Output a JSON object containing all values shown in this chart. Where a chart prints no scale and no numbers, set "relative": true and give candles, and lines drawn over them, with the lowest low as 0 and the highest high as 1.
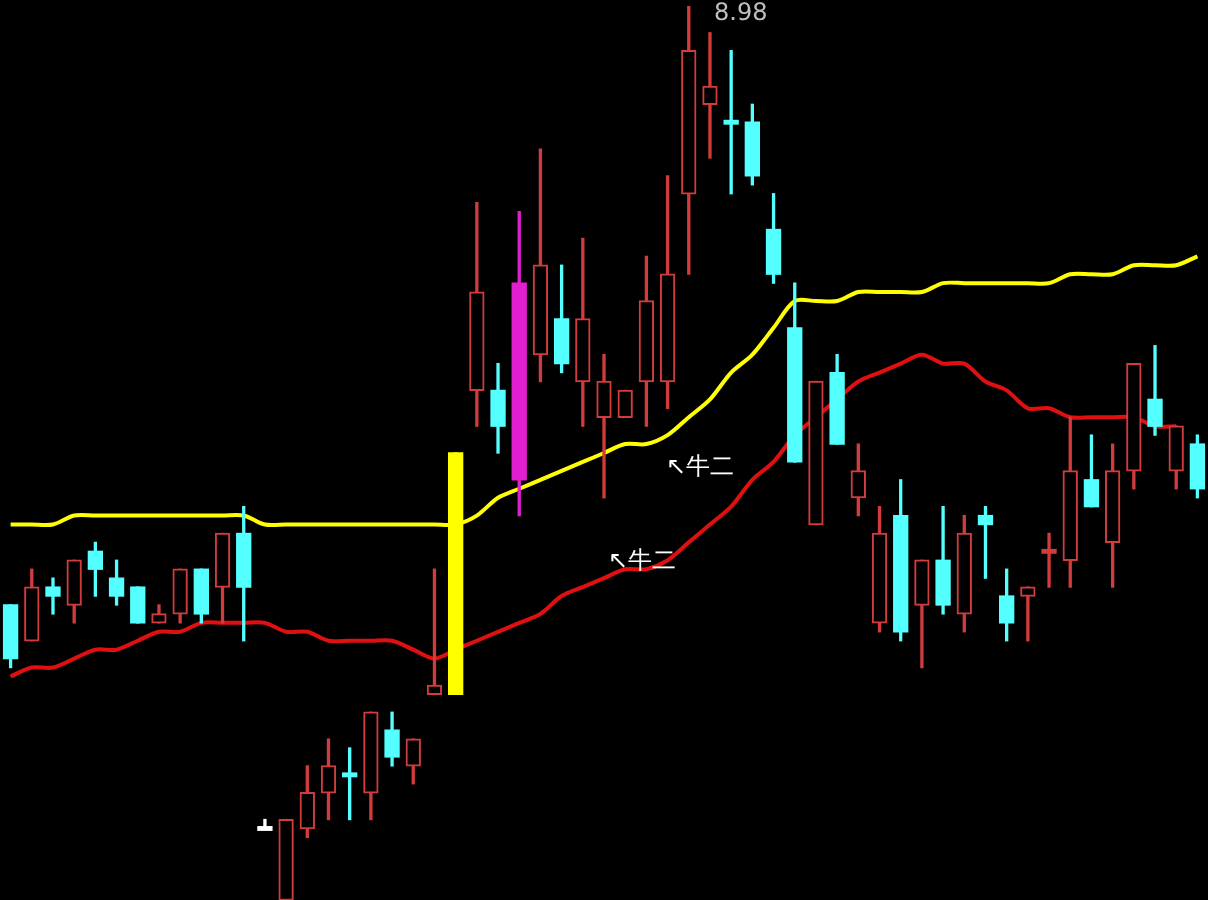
{
  "chart_data": {
    "type": "candlestick",
    "relative": true,
    "tick_labels": false,
    "legend": false,
    "categories": [
      null,
      null,
      null,
      null,
      null,
      null,
      null,
      null,
      null,
      null,
      null,
      null,
      null,
      null,
      null,
      null,
      null,
      null,
      null,
      null,
      null,
      null,
      null,
      null,
      null,
      null,
      null,
      null,
      null,
      null,
      null,
      null,
      null,
      null,
      null,
      null,
      null,
      null,
      null,
      null,
      null,
      null,
      null,
      null,
      null,
      null,
      null,
      null,
      null,
      null,
      null,
      null,
      null,
      null,
      null,
      null,
      null
    ],
    "ohlc": [
      [
        0.33,
        0.33,
        0.26,
        0.27
      ],
      [
        0.29,
        0.37,
        0.29,
        0.35
      ],
      [
        0.35,
        0.36,
        0.32,
        0.34
      ],
      [
        0.33,
        0.38,
        0.31,
        0.38
      ],
      [
        0.39,
        0.4,
        0.34,
        0.37
      ],
      [
        0.36,
        0.38,
        0.33,
        0.34
      ],
      [
        0.35,
        0.35,
        0.31,
        0.31
      ],
      [
        0.31,
        0.33,
        0.31,
        0.32
      ],
      [
        0.32,
        0.37,
        0.31,
        0.37
      ],
      [
        0.37,
        0.37,
        0.31,
        0.32
      ],
      [
        0.35,
        0.41,
        0.31,
        0.41
      ],
      [
        0.41,
        0.44,
        0.29,
        0.35
      ],
      [
        0.08,
        0.09,
        0.08,
        0.08
      ],
      [
        0,
        0.09,
        0,
        0.09
      ],
      [
        0.08,
        0.15,
        0.07,
        0.12
      ],
      [
        0.12,
        0.18,
        0.09,
        0.15
      ],
      [
        0.14,
        0.17,
        0.09,
        0.14
      ],
      [
        0.12,
        0.21,
        0.09,
        0.21
      ],
      [
        0.19,
        0.21,
        0.15,
        0.16
      ],
      [
        0.15,
        0.18,
        0.13,
        0.18
      ],
      [
        0.23,
        0.37,
        0.23,
        0.24
      ],
      [
        0.23,
        0.5,
        0.23,
        0.5
      ],
      [
        0.57,
        0.78,
        0.53,
        0.68
      ],
      [
        0.57,
        0.6,
        0.5,
        0.53
      ],
      [
        0.47,
        0.77,
        0.43,
        0.69
      ],
      [
        0.61,
        0.84,
        0.58,
        0.71
      ],
      [
        0.65,
        0.71,
        0.59,
        0.6
      ],
      [
        0.58,
        0.74,
        0.53,
        0.65
      ],
      [
        0.54,
        0.61,
        0.45,
        0.58
      ],
      [
        0.54,
        0.57,
        0.54,
        0.57
      ],
      [
        0.58,
        0.72,
        0.53,
        0.67
      ],
      [
        0.58,
        0.81,
        0.55,
        0.7
      ],
      [
        0.79,
        1,
        0.7,
        0.95
      ],
      [
        0.89,
        0.97,
        0.83,
        0.91
      ],
      [
        0.87,
        0.95,
        0.79,
        0.87
      ],
      [
        0.87,
        0.89,
        0.8,
        0.81
      ],
      [
        0.75,
        0.79,
        0.69,
        0.7
      ],
      [
        0.64,
        0.69,
        0.49,
        0.49
      ],
      [
        0.42,
        0.58,
        0.42,
        0.58
      ],
      [
        0.59,
        0.61,
        0.51,
        0.51
      ],
      [
        0.45,
        0.51,
        0.43,
        0.48
      ],
      [
        0.31,
        0.44,
        0.3,
        0.41
      ],
      [
        0.43,
        0.47,
        0.29,
        0.3
      ],
      [
        0.33,
        0.38,
        0.26,
        0.38
      ],
      [
        0.38,
        0.44,
        0.32,
        0.33
      ],
      [
        0.32,
        0.43,
        0.3,
        0.41
      ],
      [
        0.43,
        0.44,
        0.36,
        0.42
      ],
      [
        0.34,
        0.37,
        0.29,
        0.31
      ],
      [
        0.34,
        0.35,
        0.29,
        0.35
      ],
      [
        0.39,
        0.41,
        0.35,
        0.39
      ],
      [
        0.38,
        0.54,
        0.35,
        0.48
      ],
      [
        0.47,
        0.52,
        0.44,
        0.44
      ],
      [
        0.4,
        0.51,
        0.35,
        0.48
      ],
      [
        0.48,
        0.6,
        0.46,
        0.6
      ],
      [
        0.56,
        0.62,
        0.52,
        0.53
      ],
      [
        0.48,
        0.53,
        0.46,
        0.53
      ],
      [
        0.51,
        0.52,
        0.45,
        0.46
      ]
    ],
    "colors": [
      "#54ffff",
      "#d23c3c",
      "#54ffff",
      "#d23c3c",
      "#54ffff",
      "#54ffff",
      "#54ffff",
      "#d23c3c",
      "#d23c3c",
      "#54ffff",
      "#d23c3c",
      "#54ffff",
      "#ffffff",
      "#d23c3c",
      "#d23c3c",
      "#d23c3c",
      "#54ffff",
      "#d23c3c",
      "#54ffff",
      "#d23c3c",
      "#d23c3c",
      "#ffff00",
      "#d23c3c",
      "#54ffff",
      "#e020d0",
      "#d23c3c",
      "#54ffff",
      "#d23c3c",
      "#d23c3c",
      "#d23c3c",
      "#d23c3c",
      "#d23c3c",
      "#d23c3c",
      "#d23c3c",
      "#54ffff",
      "#54ffff",
      "#54ffff",
      "#54ffff",
      "#d23c3c",
      "#54ffff",
      "#d23c3c",
      "#d23c3c",
      "#54ffff",
      "#d23c3c",
      "#54ffff",
      "#d23c3c",
      "#54ffff",
      "#54ffff",
      "#d23c3c",
      "#d23c3c",
      "#d23c3c",
      "#54ffff",
      "#d23c3c",
      "#d23c3c",
      "#54ffff",
      "#d23c3c",
      "#54ffff"
    ],
    "series": [
      {
        "type": "line",
        "color": "#ffff00",
        "values": [
          0.42,
          0.42,
          0.42,
          0.43,
          0.43,
          0.43,
          0.43,
          0.43,
          0.43,
          0.43,
          0.43,
          0.43,
          0.42,
          0.42,
          0.42,
          0.42,
          0.42,
          0.42,
          0.42,
          0.42,
          0.42,
          0.42,
          0.43,
          0.45,
          0.46,
          0.47,
          0.48,
          0.49,
          0.5,
          0.51,
          0.51,
          0.52,
          0.54,
          0.56,
          0.59,
          0.61,
          0.64,
          0.67,
          0.67,
          0.67,
          0.68,
          0.68,
          0.68,
          0.68,
          0.69,
          0.69,
          0.69,
          0.69,
          0.69,
          0.69,
          0.7,
          0.7,
          0.7,
          0.71,
          0.71,
          0.71,
          0.72
        ]
      },
      {
        "type": "line",
        "color": "#e01010",
        "values": [
          0.25,
          0.26,
          0.26,
          0.27,
          0.28,
          0.28,
          0.29,
          0.3,
          0.3,
          0.31,
          0.31,
          0.31,
          0.31,
          0.3,
          0.3,
          0.29,
          0.29,
          0.29,
          0.29,
          0.28,
          0.27,
          0.28,
          0.29,
          0.3,
          0.31,
          0.32,
          0.34,
          0.35,
          0.36,
          0.37,
          0.37,
          0.38,
          0.4,
          0.42,
          0.44,
          0.47,
          0.49,
          0.52,
          0.54,
          0.56,
          0.58,
          0.59,
          0.6,
          0.61,
          0.6,
          0.6,
          0.58,
          0.57,
          0.55,
          0.55,
          0.54,
          0.54,
          0.54,
          0.54,
          0.53,
          0.53,
          null
        ]
      }
    ],
    "annotations": [
      "8.98",
      "↖牛二",
      "↖牛二"
    ]
  }
}
